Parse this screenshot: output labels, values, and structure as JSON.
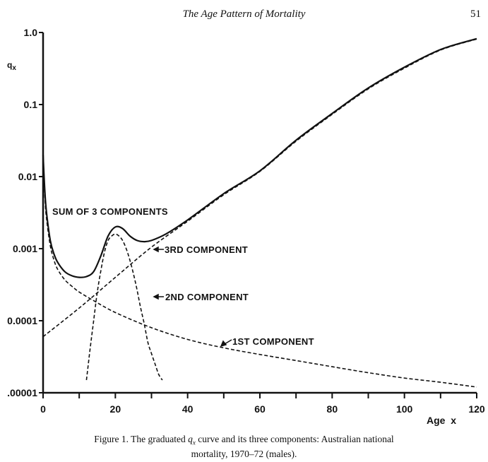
{
  "page": {
    "running_head": "The Age Pattern of Mortality",
    "page_number": "51"
  },
  "caption": {
    "line1_prefix": "Figure 1. The graduated ",
    "line1_var": "q",
    "line1_var_sub": "x",
    "line1_suffix": " curve and its three components: Australian national",
    "line2": "mortality, 1970–72 (males)."
  },
  "chart_data": {
    "type": "line",
    "title": "",
    "xlabel": "Age  x",
    "ylabel": "q",
    "ylabel_sub": "x",
    "xlim": [
      0,
      120
    ],
    "ylim": [
      1e-05,
      1.0
    ],
    "yscale": "log",
    "grid": false,
    "x_ticks": [
      0,
      10,
      20,
      30,
      40,
      50,
      60,
      70,
      80,
      90,
      100,
      110,
      120
    ],
    "x_tick_labels": [
      "0",
      "20",
      "40",
      "60",
      "80",
      "100",
      "120"
    ],
    "x_tick_label_values": [
      0,
      20,
      40,
      60,
      80,
      100,
      120
    ],
    "y_ticks": [
      1.0,
      0.1,
      0.01,
      0.001,
      0.0001,
      1e-05
    ],
    "y_tick_labels": [
      "1.0",
      "0.1",
      "0.01",
      "0.001",
      "0.0001",
      ".00001"
    ],
    "series": [
      {
        "name": "SUM OF 3 COMPONENTS",
        "style": "solid",
        "x": [
          0,
          0.5,
          1,
          2,
          3,
          4,
          6,
          8,
          10,
          12,
          14,
          16,
          18,
          20,
          22,
          24,
          26,
          28,
          30,
          34,
          40,
          50,
          60,
          70,
          80,
          90,
          100,
          110,
          120
        ],
        "y": [
          0.02,
          0.006,
          0.003,
          0.0013,
          0.00085,
          0.00065,
          0.00048,
          0.00042,
          0.0004,
          0.00041,
          0.00048,
          0.0008,
          0.0015,
          0.002,
          0.0019,
          0.0015,
          0.0013,
          0.00125,
          0.0013,
          0.0016,
          0.0025,
          0.0058,
          0.012,
          0.032,
          0.075,
          0.17,
          0.33,
          0.58,
          0.82
        ]
      },
      {
        "name": "1ST COMPONENT",
        "style": "dashed",
        "x": [
          0,
          0.5,
          1,
          2,
          3,
          4,
          6,
          8,
          10,
          14,
          20,
          30,
          40,
          50,
          60,
          70,
          80,
          90,
          100,
          110,
          120
        ],
        "y": [
          0.02,
          0.005,
          0.0025,
          0.0011,
          0.0007,
          0.00052,
          0.00037,
          0.0003,
          0.00025,
          0.00019,
          0.00013,
          8e-05,
          5.5e-05,
          4.2e-05,
          3.4e-05,
          2.8e-05,
          2.3e-05,
          1.9e-05,
          1.6e-05,
          1.4e-05,
          1.2e-05
        ]
      },
      {
        "name": "2ND COMPONENT",
        "style": "dashed",
        "x": [
          12,
          13,
          14,
          15,
          16,
          17,
          18,
          19,
          20,
          21,
          22,
          23,
          24,
          25,
          26,
          27,
          28,
          29,
          30,
          31,
          32,
          33
        ],
        "y": [
          1.5e-05,
          4e-05,
          0.0001,
          0.00025,
          0.0005,
          0.0009,
          0.0013,
          0.0015,
          0.0016,
          0.0015,
          0.0013,
          0.001,
          0.0007,
          0.00045,
          0.00027,
          0.00015,
          9e-05,
          5e-05,
          3.5e-05,
          2.5e-05,
          1.8e-05,
          1.5e-05
        ]
      },
      {
        "name": "3RD COMPONENT",
        "style": "dashed",
        "x": [
          0,
          10,
          20,
          30,
          40,
          50,
          60,
          70,
          80,
          90,
          100,
          110,
          120
        ],
        "y": [
          6e-05,
          0.00015,
          0.0004,
          0.00105,
          0.0024,
          0.0056,
          0.0118,
          0.031,
          0.073,
          0.165,
          0.32,
          0.57,
          0.81
        ]
      }
    ],
    "annotations": [
      {
        "text": "SUM OF 3 COMPONENTS",
        "target": "SUM OF 3 COMPONENTS",
        "arrow": false
      },
      {
        "text": "3RD COMPONENT",
        "target": "3RD COMPONENT",
        "arrow": true
      },
      {
        "text": "2ND COMPONENT",
        "target": "2ND COMPONENT",
        "arrow": true
      },
      {
        "text": "1ST COMPONENT",
        "target": "1ST COMPONENT",
        "arrow": true
      }
    ]
  }
}
